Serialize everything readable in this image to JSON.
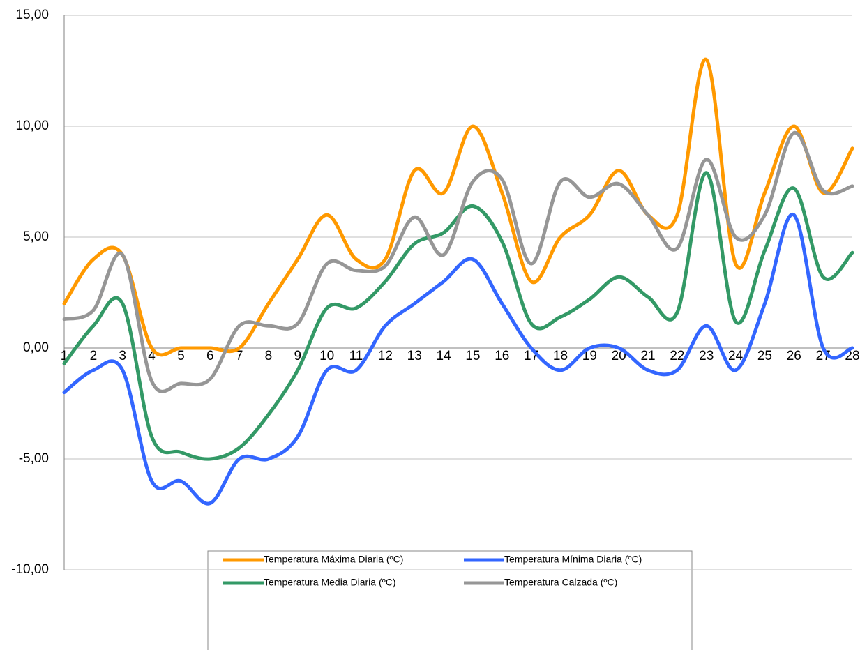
{
  "chart_data": {
    "type": "line",
    "categories": [
      "1",
      "2",
      "3",
      "4",
      "5",
      "6",
      "7",
      "8",
      "9",
      "10",
      "11",
      "12",
      "13",
      "14",
      "15",
      "16",
      "17",
      "18",
      "19",
      "20",
      "21",
      "22",
      "23",
      "24",
      "25",
      "26",
      "27",
      "28"
    ],
    "series": [
      {
        "name": "Temperatura Máxima Diaria (ºC)",
        "color": "#ff9900",
        "values": [
          2,
          4,
          4.2,
          0,
          0,
          0,
          0,
          2,
          4,
          6,
          4,
          4,
          8,
          7,
          10,
          7,
          3,
          5,
          6,
          8,
          6,
          6,
          13,
          3.8,
          7,
          10,
          7,
          9
        ]
      },
      {
        "name": "Temperatura Mínima Diaria (ºC)",
        "color": "#3366ff",
        "values": [
          -2,
          -1,
          -1,
          -6,
          -6,
          -7,
          -5,
          -5,
          -4,
          -1,
          -1,
          1,
          2,
          3,
          4,
          2,
          0,
          -1,
          0,
          0,
          -1,
          -1,
          1,
          -1,
          2,
          6,
          0,
          0
        ]
      },
      {
        "name": "Temperatura Media Diaria (ºC)",
        "color": "#339966",
        "values": [
          -0.7,
          1,
          2,
          -4,
          -4.7,
          -5,
          -4.5,
          -3,
          -1,
          1.8,
          1.8,
          3,
          4.7,
          5.2,
          6.4,
          4.8,
          1.1,
          1.4,
          2.2,
          3.2,
          2.3,
          1.6,
          7.9,
          1.2,
          4.4,
          7.2,
          3.2,
          4.3
        ]
      },
      {
        "name": "Temperatura Calzada (ºC)",
        "color": "#969696",
        "values": [
          1.3,
          1.7,
          4.2,
          -1.5,
          -1.6,
          -1.4,
          1,
          1,
          1.1,
          3.8,
          3.5,
          3.7,
          5.9,
          4.2,
          7.5,
          7.6,
          3.8,
          7.5,
          6.8,
          7.4,
          6,
          4.5,
          8.5,
          5,
          6,
          9.7,
          7.1,
          7.3
        ]
      }
    ],
    "ylim": [
      -10,
      15
    ],
    "yticks": [
      {
        "value": -10,
        "label": "-10,00"
      },
      {
        "value": -5,
        "label": "-5,00"
      },
      {
        "value": 0,
        "label": "0,00"
      },
      {
        "value": 5,
        "label": "5,00"
      },
      {
        "value": 10,
        "label": "10,00"
      },
      {
        "value": 15,
        "label": "15,00"
      }
    ],
    "grid": true,
    "smooth": true,
    "legend": "bottom"
  }
}
